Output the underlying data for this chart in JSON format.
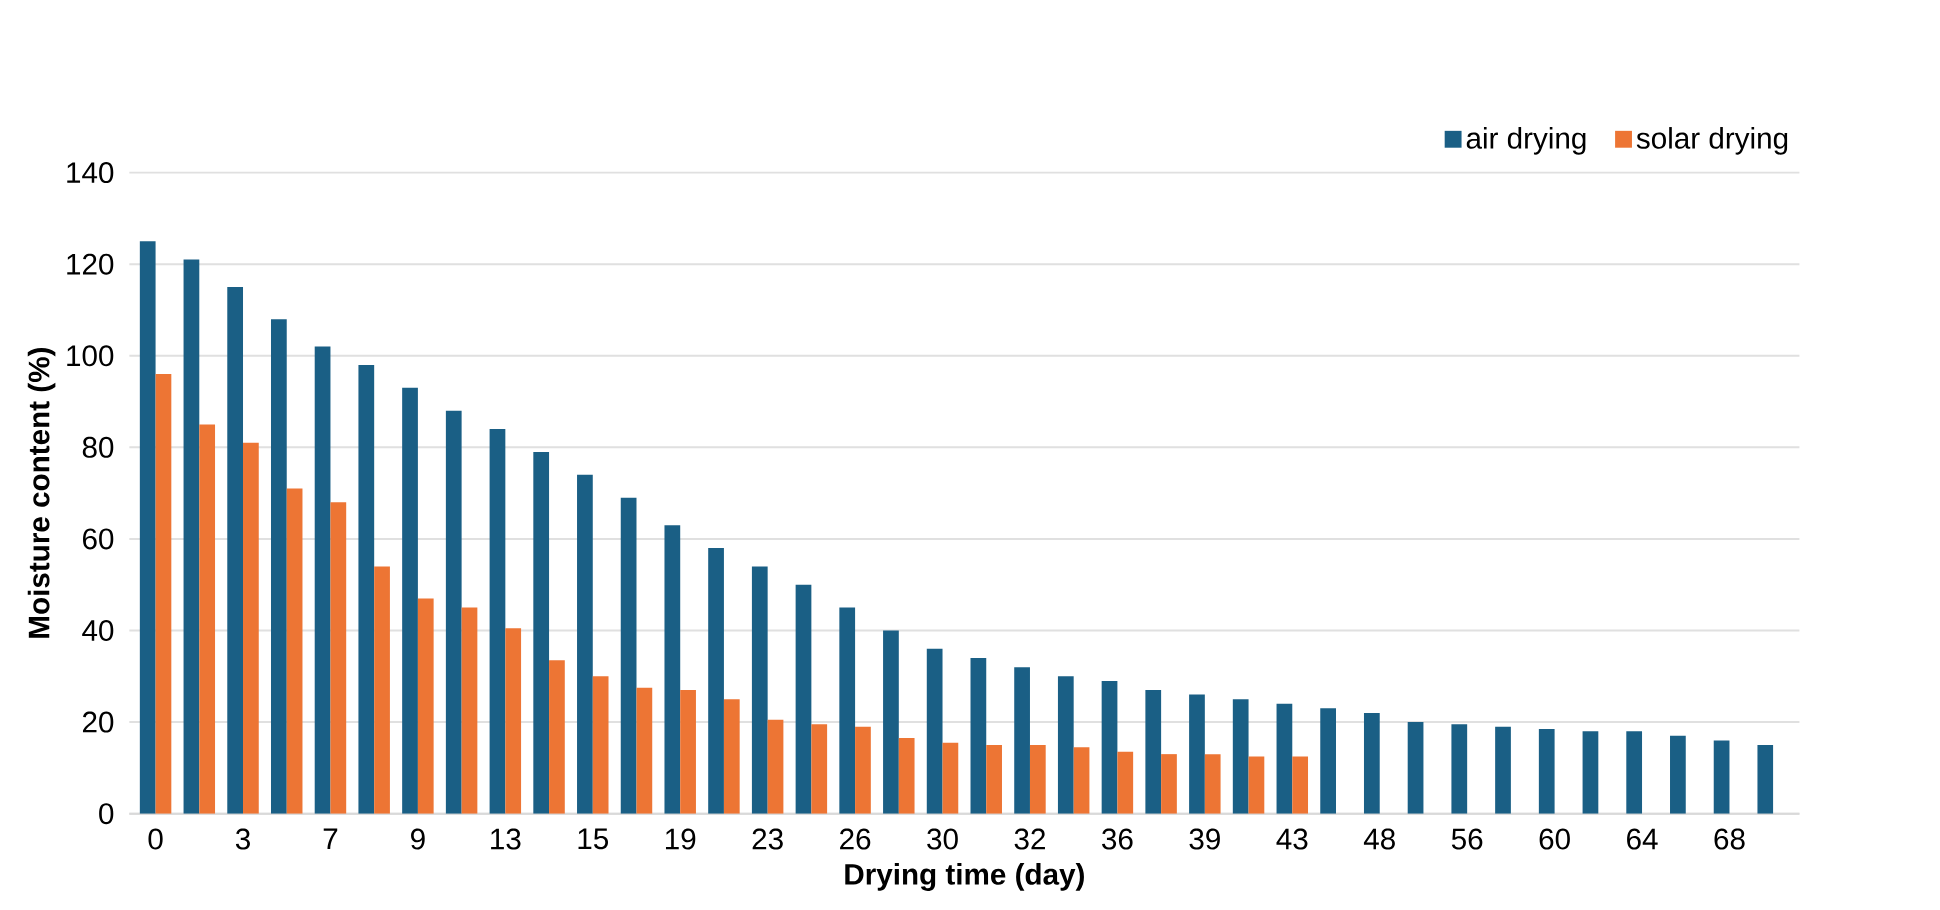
{
  "chart_data": {
    "type": "bar",
    "xlabel": "Drying time (day)",
    "ylabel": "Moisture content (%)",
    "categories": [
      "0",
      null,
      "3",
      null,
      "7",
      null,
      "9",
      null,
      "13",
      null,
      "15",
      null,
      "19",
      null,
      "23",
      null,
      "26",
      null,
      "30",
      null,
      "32",
      null,
      "36",
      null,
      "39",
      null,
      "43",
      null,
      "48",
      null,
      "56",
      null,
      "60",
      null,
      "64",
      null,
      "68",
      null
    ],
    "series": [
      {
        "name": "air drying",
        "color": "#1a5f85",
        "values": [
          125,
          121,
          115,
          108,
          102,
          98,
          93,
          88,
          84,
          79,
          74,
          69,
          63,
          58,
          54,
          50,
          45,
          40,
          36,
          34,
          32,
          30,
          29,
          27,
          26,
          25,
          24,
          23,
          22,
          20,
          19.5,
          19,
          18.5,
          18,
          18,
          17,
          16,
          15
        ]
      },
      {
        "name": "solar drying",
        "color": "#ed7534",
        "values": [
          96,
          85,
          81,
          71,
          68,
          54,
          47,
          45,
          40.5,
          33.5,
          30,
          27.5,
          27,
          25,
          20.5,
          19.5,
          19,
          16.5,
          15.5,
          15,
          15,
          14.5,
          13.5,
          13,
          13,
          12.5,
          12.5,
          null,
          null,
          null,
          null,
          null,
          null,
          null,
          null,
          null,
          null,
          null
        ]
      }
    ],
    "ylim": [
      0,
      140
    ],
    "yticks": [
      0,
      20,
      40,
      60,
      80,
      100,
      120,
      140
    ],
    "grid": "y",
    "legend": "top right"
  }
}
